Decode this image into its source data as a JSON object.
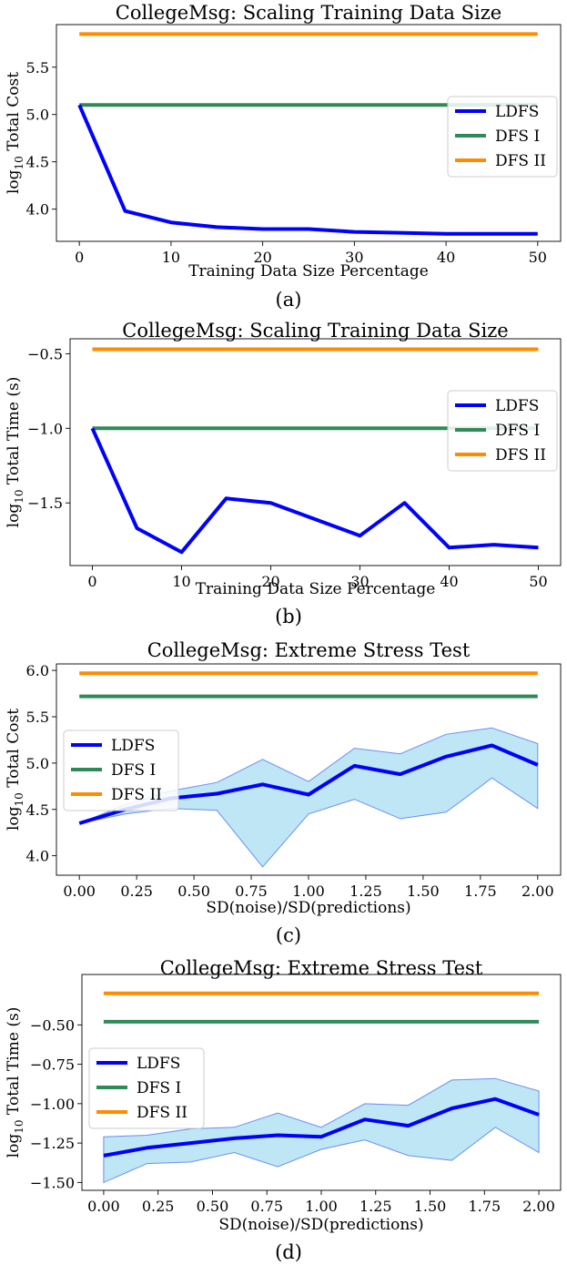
{
  "colors": {
    "ldfs": "#0000ff",
    "dfs1": "#2e8b57",
    "dfs2": "#ff8c00",
    "band_fill": "#bfe6f5",
    "band_edge": "#6b8ef5"
  },
  "chart_data": [
    {
      "type": "line",
      "caption": "(a)",
      "title": "CollegeMsg: Scaling Training Data Size",
      "xlabel": "Training Data Size Percentage",
      "ylabel": "log10 Total Cost",
      "ylabel_base": "log",
      "ylabel_sub": "10",
      "ylabel_rest": " Total Cost",
      "xlim": [
        -2.5,
        52.5
      ],
      "ylim": [
        3.66,
        5.95
      ],
      "xticks": [
        0,
        10,
        20,
        30,
        40,
        50
      ],
      "xtick_labels": [
        "0",
        "10",
        "20",
        "30",
        "40",
        "50"
      ],
      "yticks": [
        4.0,
        4.5,
        5.0,
        5.5
      ],
      "ytick_labels": [
        "4.0",
        "4.5",
        "5.0",
        "5.5"
      ],
      "legend_position": "center-right",
      "series": [
        {
          "name": "LDFS",
          "key": "ldfs",
          "x": [
            0,
            5,
            10,
            15,
            20,
            25,
            30,
            35,
            40,
            45,
            50
          ],
          "y": [
            5.1,
            3.98,
            3.86,
            3.81,
            3.79,
            3.79,
            3.76,
            3.75,
            3.74,
            3.74,
            3.74
          ]
        },
        {
          "name": "DFS I",
          "key": "dfs1",
          "x": [
            0,
            50
          ],
          "y": [
            5.1,
            5.1
          ]
        },
        {
          "name": "DFS II",
          "key": "dfs2",
          "x": [
            0,
            50
          ],
          "y": [
            5.85,
            5.85
          ]
        }
      ]
    },
    {
      "type": "line",
      "caption": "(b)",
      "title": "CollegeMsg: Scaling Training Data Size",
      "xlabel": "Training Data Size Percentage",
      "ylabel": "log10 Total Time (s)",
      "ylabel_base": "log",
      "ylabel_sub": "10",
      "ylabel_rest": " Total Time (s)",
      "xlim": [
        -2.5,
        52.5
      ],
      "ylim": [
        -1.92,
        -0.4
      ],
      "xticks": [
        0,
        10,
        20,
        30,
        40,
        50
      ],
      "xtick_labels": [
        "0",
        "10",
        "20",
        "30",
        "40",
        "50"
      ],
      "yticks": [
        -1.5,
        -1.0,
        -0.5
      ],
      "ytick_labels": [
        "−1.5",
        "−1.0",
        "−0.5"
      ],
      "legend_position": "center-right",
      "series": [
        {
          "name": "LDFS",
          "key": "ldfs",
          "x": [
            0,
            5,
            10,
            15,
            20,
            25,
            30,
            35,
            40,
            45,
            50
          ],
          "y": [
            -1.0,
            -1.67,
            -1.83,
            -1.47,
            -1.5,
            -1.61,
            -1.72,
            -1.5,
            -1.8,
            -1.78,
            -1.8
          ]
        },
        {
          "name": "DFS I",
          "key": "dfs1",
          "x": [
            0,
            50
          ],
          "y": [
            -1.0,
            -1.0
          ]
        },
        {
          "name": "DFS II",
          "key": "dfs2",
          "x": [
            0,
            50
          ],
          "y": [
            -0.47,
            -0.47
          ]
        }
      ]
    },
    {
      "type": "line",
      "caption": "(c)",
      "title": "CollegeMsg: Extreme Stress Test",
      "xlabel": "SD(noise)/SD(predictions)",
      "ylabel": "log10 Total Cost",
      "ylabel_base": "log",
      "ylabel_sub": "10",
      "ylabel_rest": " Total Cost",
      "xlim": [
        -0.1,
        2.1
      ],
      "ylim": [
        3.79,
        6.07
      ],
      "xticks": [
        0,
        0.25,
        0.5,
        0.75,
        1.0,
        1.25,
        1.5,
        1.75,
        2.0
      ],
      "xtick_labels": [
        "0.00",
        "0.25",
        "0.50",
        "0.75",
        "1.00",
        "1.25",
        "1.50",
        "1.75",
        "2.00"
      ],
      "yticks": [
        4.0,
        4.5,
        5.0,
        5.5,
        6.0
      ],
      "ytick_labels": [
        "4.0",
        "4.5",
        "5.0",
        "5.5",
        "6.0"
      ],
      "legend_position": "center-left",
      "series": [
        {
          "name": "LDFS",
          "key": "ldfs",
          "x": [
            0,
            0.2,
            0.4,
            0.6,
            0.8,
            1.0,
            1.2,
            1.4,
            1.6,
            1.8,
            2.0
          ],
          "y": [
            4.35,
            4.5,
            4.62,
            4.67,
            4.77,
            4.66,
            4.97,
            4.88,
            5.07,
            5.19,
            4.98
          ],
          "band_upper": [
            4.35,
            4.55,
            4.7,
            4.79,
            5.04,
            4.8,
            5.16,
            5.1,
            5.31,
            5.38,
            5.21
          ],
          "band_lower": [
            4.35,
            4.45,
            4.51,
            4.49,
            3.88,
            4.45,
            4.61,
            4.4,
            4.47,
            4.84,
            4.51
          ]
        },
        {
          "name": "DFS I",
          "key": "dfs1",
          "x": [
            0,
            2.0
          ],
          "y": [
            5.72,
            5.72
          ]
        },
        {
          "name": "DFS II",
          "key": "dfs2",
          "x": [
            0,
            2.0
          ],
          "y": [
            5.97,
            5.97
          ]
        }
      ]
    },
    {
      "type": "line",
      "caption": "(d)",
      "title": "CollegeMsg: Extreme Stress Test",
      "xlabel": "SD(noise)/SD(predictions)",
      "ylabel": "log10 Total Time (s)",
      "ylabel_base": "log",
      "ylabel_sub": "10",
      "ylabel_rest": " Total Time (s)",
      "xlim": [
        -0.1,
        2.1
      ],
      "ylim": [
        -1.55,
        -0.18
      ],
      "xticks": [
        0,
        0.25,
        0.5,
        0.75,
        1.0,
        1.25,
        1.5,
        1.75,
        2.0
      ],
      "xtick_labels": [
        "0.00",
        "0.25",
        "0.50",
        "0.75",
        "1.00",
        "1.25",
        "1.50",
        "1.75",
        "2.00"
      ],
      "yticks": [
        -1.5,
        -1.25,
        -1.0,
        -0.75,
        -0.5
      ],
      "ytick_labels": [
        "−1.50",
        "−1.25",
        "−1.00",
        "−0.75",
        "−0.50"
      ],
      "legend_position": "center-left",
      "series": [
        {
          "name": "LDFS",
          "key": "ldfs",
          "x": [
            0,
            0.2,
            0.4,
            0.6,
            0.8,
            1.0,
            1.2,
            1.4,
            1.6,
            1.8,
            2.0
          ],
          "y": [
            -1.33,
            -1.28,
            -1.25,
            -1.22,
            -1.2,
            -1.21,
            -1.1,
            -1.14,
            -1.03,
            -0.97,
            -1.07
          ],
          "band_upper": [
            -1.21,
            -1.2,
            -1.16,
            -1.15,
            -1.06,
            -1.15,
            -1.0,
            -1.01,
            -0.85,
            -0.84,
            -0.92
          ],
          "band_lower": [
            -1.5,
            -1.38,
            -1.37,
            -1.31,
            -1.4,
            -1.29,
            -1.23,
            -1.33,
            -1.36,
            -1.15,
            -1.31
          ]
        },
        {
          "name": "DFS I",
          "key": "dfs1",
          "x": [
            0,
            2.0
          ],
          "y": [
            -0.48,
            -0.48
          ]
        },
        {
          "name": "DFS II",
          "key": "dfs2",
          "x": [
            0,
            2.0
          ],
          "y": [
            -0.3,
            -0.3
          ]
        }
      ]
    }
  ]
}
